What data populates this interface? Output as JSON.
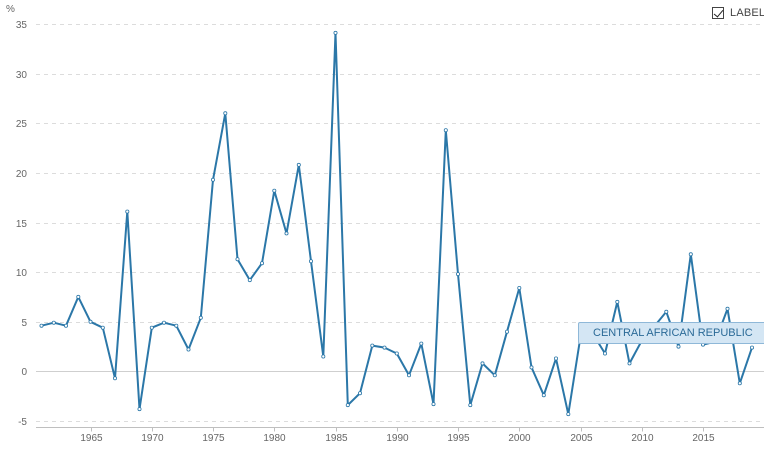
{
  "toggle": {
    "label": "LABEL",
    "checked": true
  },
  "series_tag": {
    "text": "CENTRAL AFRICAN REPUBLIC"
  },
  "colors": {
    "line": "#2b77a8",
    "tag_background": "#d4e6f4",
    "tag_text": "#2b6a97"
  },
  "chart_data": {
    "type": "line",
    "unit_label": "%",
    "title": "",
    "xlabel": "",
    "ylabel": "%",
    "xlim": [
      1960,
      2019
    ],
    "ylim": [
      -5,
      35
    ],
    "grid": true,
    "y_ticks": [
      -5,
      0,
      5,
      10,
      15,
      20,
      25,
      30,
      35
    ],
    "x_ticks": [
      1965,
      1970,
      1975,
      1980,
      1985,
      1990,
      1995,
      2000,
      2005,
      2010,
      2015
    ],
    "series": [
      {
        "name": "CENTRAL AFRICAN REPUBLIC",
        "x": [
          1961,
          1962,
          1963,
          1964,
          1965,
          1966,
          1967,
          1968,
          1969,
          1970,
          1971,
          1972,
          1973,
          1974,
          1975,
          1976,
          1977,
          1978,
          1979,
          1980,
          1981,
          1982,
          1983,
          1984,
          1985,
          1986,
          1987,
          1988,
          1989,
          1990,
          1991,
          1992,
          1993,
          1994,
          1995,
          1996,
          1997,
          1998,
          1999,
          2000,
          2001,
          2002,
          2003,
          2004,
          2005,
          2006,
          2007,
          2008,
          2009,
          2010,
          2011,
          2012,
          2013,
          2014,
          2015,
          2016,
          2017,
          2018,
          2019
        ],
        "values": [
          4.6,
          4.9,
          4.6,
          7.5,
          5.0,
          4.4,
          -0.7,
          16.1,
          -3.8,
          4.4,
          4.9,
          4.6,
          2.2,
          5.4,
          19.3,
          26.0,
          11.3,
          9.2,
          10.9,
          18.2,
          13.9,
          20.8,
          11.1,
          1.5,
          34.1,
          -3.4,
          -2.2,
          2.6,
          2.4,
          1.8,
          -0.4,
          2.8,
          -3.3,
          24.3,
          9.8,
          -3.4,
          0.8,
          -0.4,
          4.0,
          8.4,
          0.4,
          -2.4,
          1.3,
          -4.3,
          3.5,
          3.8,
          1.8,
          7.0,
          0.8,
          3.1,
          4.5,
          6.0,
          2.5,
          11.8,
          2.7,
          3.0,
          6.3,
          -1.2,
          2.4
        ]
      }
    ]
  }
}
